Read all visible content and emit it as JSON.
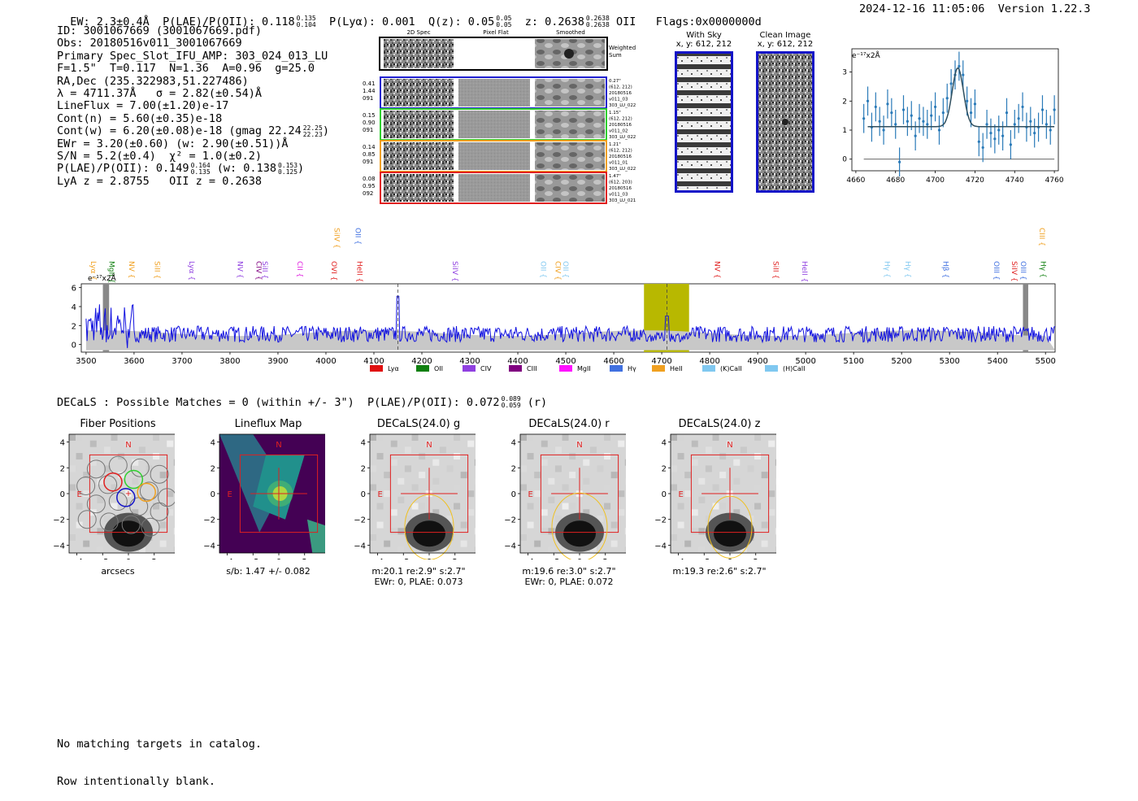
{
  "header": {
    "ew": "EW: 2.3±0.4Å",
    "plae_label": "P(LAE)/P(OII): 0.118",
    "plae_hi": "0.135",
    "plae_lo": "0.104",
    "plya": "P(Lyα): 0.001",
    "qz_label": "Q(z): 0.05",
    "qz_hi": "0.05",
    "qz_lo": "0.05",
    "z_label": "z: 0.2638",
    "z_hi": "0.2638",
    "z_lo": "0.2638",
    "z_line": "OII",
    "flags": "Flags:0x0000000d",
    "datetime": "2024-12-16 11:05:06",
    "version": "Version 1.22.3"
  },
  "info": {
    "id": "ID: 3001067669 (3001067669.pdf)",
    "obs": "Obs: 20180516v011_3001067669",
    "primary": "Primary Spec_Slot_IFU_AMP: 303_024_013_LU",
    "params": "F=1.5\"  T=0.117  N=1.36  A=0.96  g=25.0",
    "radec": "RA,Dec (235.322983,51.227486)",
    "lambda_sigma": "λ = 4711.37Å   σ = 2.82(±0.54)Å",
    "lineflux": "LineFlux = 7.00(±1.20)e-17",
    "contn": "Cont(n) = 5.60(±0.35)e-18",
    "contw": "Cont(w) = 6.20(±0.08)e-18 (gmag 22.24",
    "gmag_hi": "22.25",
    "gmag_lo": "22.23",
    "contw_close": ")",
    "ewr": "EWr = 3.20(±0.60) (w: 2.90(±0.51))Å",
    "sn_chi": "S/N = 5.2(±0.4)  χ² = 1.0(±0.2)",
    "plae2": "P(LAE)/P(OII): 0.149",
    "plae2_hi": "0.164",
    "plae2_lo": "0.135",
    "plae2_w": "(w: 0.138",
    "plae2_w_hi": "0.153",
    "plae2_w_lo": "0.125",
    "plae2_close": ")",
    "zline": "LyA z = 2.8755   OII z = 0.2638"
  },
  "cutouts": {
    "headers": [
      "2D Spec",
      "Pixel Flat",
      "Smoothed"
    ],
    "weighted_label": "Weighted\nSum",
    "rows": [
      {
        "left": [
          "0.41",
          "1.44",
          "091"
        ],
        "right": [
          "0.27\"",
          "(612, 212)",
          "20180516",
          "v011_03",
          "303_LU_022"
        ],
        "color": "#1f1fcf"
      },
      {
        "left": [
          "0.15",
          "0.90",
          "091"
        ],
        "right": [
          "1.15\"",
          "(612, 212)",
          "20180516",
          "v011_02",
          "303_LU_022"
        ],
        "color": "#2fd02f"
      },
      {
        "left": [
          "0.14",
          "0.85",
          "091"
        ],
        "right": [
          "1.21\"",
          "(612, 212)",
          "20180516",
          "v011_01",
          "303_LU_022"
        ],
        "color": "#f0a020"
      },
      {
        "left": [
          "0.08",
          "0.95",
          "092"
        ],
        "right": [
          "1.47\"",
          "(612, 203)",
          "20180516",
          "v011_03",
          "303_LU_021"
        ],
        "color": "#e02020"
      }
    ]
  },
  "sky": {
    "with_sky_title": "With Sky",
    "with_sky_coords": "x, y: 612, 212",
    "clean_title": "Clean Image",
    "clean_coords": "x, y: 612, 212"
  },
  "chart_data": [
    {
      "type": "scatter",
      "name": "line-fit",
      "ylabel": "e⁻¹⁷x2Å",
      "xlim": [
        4658,
        4762
      ],
      "ylim": [
        -0.4,
        3.8
      ],
      "xticks": [
        4660,
        4680,
        4700,
        4720,
        4740,
        4760
      ],
      "yticks": [
        0,
        1,
        2,
        3
      ],
      "x": [
        4664,
        4666,
        4668,
        4670,
        4672,
        4674,
        4676,
        4678,
        4680,
        4682,
        4684,
        4686,
        4688,
        4690,
        4692,
        4694,
        4696,
        4698,
        4700,
        4702,
        4704,
        4706,
        4708,
        4710,
        4712,
        4714,
        4716,
        4718,
        4720,
        4722,
        4724,
        4726,
        4728,
        4730,
        4732,
        4734,
        4736,
        4738,
        4740,
        4742,
        4744,
        4746,
        4748,
        4750,
        4752,
        4754,
        4756,
        4758,
        4760
      ],
      "y": [
        1.4,
        2.0,
        1.1,
        1.8,
        1.3,
        1.0,
        1.9,
        1.6,
        1.2,
        -0.1,
        1.7,
        1.3,
        1.5,
        0.8,
        1.4,
        1.3,
        1.2,
        1.5,
        1.8,
        1.0,
        1.6,
        2.1,
        2.6,
        2.9,
        3.2,
        2.9,
        2.0,
        1.6,
        1.9,
        0.6,
        0.4,
        1.2,
        0.9,
        0.7,
        1.0,
        0.8,
        1.6,
        0.5,
        1.2,
        1.4,
        1.8,
        1.1,
        1.3,
        0.9,
        1.1,
        1.7,
        1.2,
        1.0,
        1.7
      ],
      "err": 0.5,
      "fit": {
        "continuum": 1.12,
        "amplitude": 2.02,
        "center": 4711.37,
        "sigma": 2.82
      }
    },
    {
      "type": "line",
      "name": "full-spectrum",
      "ylabel": "e⁻¹⁷x2Å",
      "xlim": [
        3490,
        5520
      ],
      "ylim": [
        -0.8,
        6.4
      ],
      "xticks": [
        3500,
        3600,
        3700,
        3800,
        3900,
        4000,
        4100,
        4200,
        4300,
        4400,
        4500,
        4600,
        4700,
        4800,
        4900,
        5000,
        5100,
        5200,
        5300,
        5400,
        5500
      ],
      "yticks": [
        0,
        2,
        4,
        6
      ],
      "highlight_band": [
        4663,
        4757
      ],
      "emission_peak": {
        "x": 4711.37,
        "y": 3.0
      },
      "secondary_peak": {
        "x": 4150,
        "y": 5.1
      },
      "dashed_lines": [
        4150,
        4711
      ],
      "line_labels_top": [
        {
          "x": 4013,
          "label": "SiIV",
          "color": "#f0a020"
        },
        {
          "x": 4057,
          "label": "OII",
          "color": "#4070e0"
        },
        {
          "x": 5483,
          "label": "CIII",
          "color": "#f0a020"
        }
      ],
      "line_labels": [
        {
          "x": 3505,
          "label": "Lyα",
          "color": "#f0a020"
        },
        {
          "x": 3543,
          "label": "MgII",
          "color": "#108010"
        },
        {
          "x": 3585,
          "label": "NV",
          "color": "#f0a020"
        },
        {
          "x": 3638,
          "label": "SiII",
          "color": "#f0a020"
        },
        {
          "x": 3710,
          "label": "Lyα",
          "color": "#9040e0"
        },
        {
          "x": 3811,
          "label": "NV",
          "color": "#9040e0"
        },
        {
          "x": 3850,
          "label": "CIV",
          "color": "#800080"
        },
        {
          "x": 3863,
          "label": "SiII",
          "color": "#9040e0"
        },
        {
          "x": 3936,
          "label": "CII",
          "color": "#e020e0"
        },
        {
          "x": 4007,
          "label": "OVI",
          "color": "#e02020"
        },
        {
          "x": 4060,
          "label": "HeII",
          "color": "#e02020"
        },
        {
          "x": 4259,
          "label": "SiIV",
          "color": "#9040e0"
        },
        {
          "x": 4443,
          "label": "OII",
          "color": "#80c8f0"
        },
        {
          "x": 4474,
          "label": "CIV",
          "color": "#f0a020"
        },
        {
          "x": 4490,
          "label": "OII",
          "color": "#80c8f0"
        },
        {
          "x": 4806,
          "label": "NV",
          "color": "#e02020"
        },
        {
          "x": 4928,
          "label": "SiII",
          "color": "#e02020"
        },
        {
          "x": 4988,
          "label": "HeII",
          "color": "#9040e0"
        },
        {
          "x": 5160,
          "label": "Hγ",
          "color": "#80c8f0"
        },
        {
          "x": 5203,
          "label": "Hγ",
          "color": "#80c8f0"
        },
        {
          "x": 5282,
          "label": "Hβ",
          "color": "#4070e0"
        },
        {
          "x": 5388,
          "label": "OIII",
          "color": "#4070e0"
        },
        {
          "x": 5425,
          "label": "SiIV",
          "color": "#e02020"
        },
        {
          "x": 5444,
          "label": "OIII",
          "color": "#4070e0"
        },
        {
          "x": 5485,
          "label": "Hγ",
          "color": "#108010"
        }
      ],
      "legend": [
        {
          "label": "Lyα",
          "color": "#e01010"
        },
        {
          "label": "OII",
          "color": "#108010"
        },
        {
          "label": "CIV",
          "color": "#9040e0"
        },
        {
          "label": "CIII",
          "color": "#800080"
        },
        {
          "label": "MgII",
          "color": "#ff10ff"
        },
        {
          "label": "Hγ",
          "color": "#4070e0"
        },
        {
          "label": "HeII",
          "color": "#f0a020"
        },
        {
          "label": "(K)CaII",
          "color": "#80c8f0"
        },
        {
          "label": "(H)CaII",
          "color": "#80c8f0"
        }
      ]
    }
  ],
  "decals": {
    "summary": "DECaLS : Possible Matches = 0 (within +/- 3\")  P(LAE)/P(OII): 0.072",
    "plae_hi": "0.089",
    "plae_lo": "0.059",
    "band": "(r)",
    "panels": [
      {
        "title": "Fiber Positions",
        "caption1": "arcsecs",
        "caption2": ""
      },
      {
        "title": "Lineflux Map",
        "caption1": "s/b: 1.47 +/- 0.082",
        "caption2": ""
      },
      {
        "title": "DECaLS(24.0) g",
        "caption1": "m:20.1  re:2.9\"  s:2.7\"",
        "caption2": "EWr: 0, PLAE: 0.073"
      },
      {
        "title": "DECaLS(24.0) r",
        "caption1": "m:19.6  re:3.0\"  s:2.7\"",
        "caption2": "EWr: 0, PLAE: 0.072"
      },
      {
        "title": "DECaLS(24.0) z",
        "caption1": "m:19.3  re:2.6\"  s:2.7\"",
        "caption2": ""
      }
    ],
    "ticks": [
      "−4",
      "−2",
      "0",
      "2",
      "4"
    ],
    "north": "N",
    "east": "E"
  },
  "footer": {
    "line1": "No matching targets in catalog.",
    "line2": "Row intentionally blank."
  }
}
